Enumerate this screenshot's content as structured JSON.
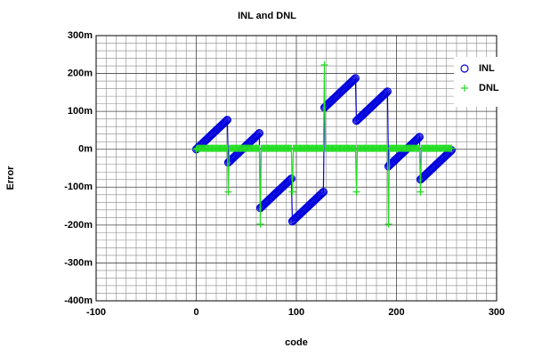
{
  "chart_data": {
    "type": "line",
    "title": "INL and DNL",
    "x_label": "code",
    "y_label": "Error",
    "xlim": [
      -100,
      300
    ],
    "xticks": [
      -100,
      0,
      100,
      200,
      300
    ],
    "ylim": [
      -0.4,
      0.3
    ],
    "yticks": [
      {
        "value": -0.4,
        "label": "-400m"
      },
      {
        "value": -0.3,
        "label": "-300m"
      },
      {
        "value": -0.2,
        "label": "-200m"
      },
      {
        "value": -0.1,
        "label": "-100m"
      },
      {
        "value": 0,
        "label": "0m"
      },
      {
        "value": 0.1,
        "label": "100m"
      },
      {
        "value": 0.2,
        "label": "200m"
      },
      {
        "value": 0.3,
        "label": "300m"
      }
    ],
    "grid": true,
    "legend": "upper right",
    "x": [
      0,
      1,
      2,
      3,
      4,
      5,
      6,
      7,
      8,
      9,
      10,
      11,
      12,
      13,
      14,
      15,
      16,
      17,
      18,
      19,
      20,
      21,
      22,
      23,
      24,
      25,
      26,
      27,
      28,
      29,
      30,
      31,
      32,
      33,
      34,
      35,
      36,
      37,
      38,
      39,
      40,
      41,
      42,
      43,
      44,
      45,
      46,
      47,
      48,
      49,
      50,
      51,
      52,
      53,
      54,
      55,
      56,
      57,
      58,
      59,
      60,
      61,
      62,
      63,
      64,
      65,
      66,
      67,
      68,
      69,
      70,
      71,
      72,
      73,
      74,
      75,
      76,
      77,
      78,
      79,
      80,
      81,
      82,
      83,
      84,
      85,
      86,
      87,
      88,
      89,
      90,
      91,
      92,
      93,
      94,
      95,
      96,
      97,
      98,
      99,
      100,
      101,
      102,
      103,
      104,
      105,
      106,
      107,
      108,
      109,
      110,
      111,
      112,
      113,
      114,
      115,
      116,
      117,
      118,
      119,
      120,
      121,
      122,
      123,
      124,
      125,
      126,
      127,
      128,
      129,
      130,
      131,
      132,
      133,
      134,
      135,
      136,
      137,
      138,
      139,
      140,
      141,
      142,
      143,
      144,
      145,
      146,
      147,
      148,
      149,
      150,
      151,
      152,
      153,
      154,
      155,
      156,
      157,
      158,
      159,
      160,
      161,
      162,
      163,
      164,
      165,
      166,
      167,
      168,
      169,
      170,
      171,
      172,
      173,
      174,
      175,
      176,
      177,
      178,
      179,
      180,
      181,
      182,
      183,
      184,
      185,
      186,
      187,
      188,
      189,
      190,
      191,
      192,
      193,
      194,
      195,
      196,
      197,
      198,
      199,
      200,
      201,
      202,
      203,
      204,
      205,
      206,
      207,
      208,
      209,
      210,
      211,
      212,
      213,
      214,
      215,
      216,
      217,
      218,
      219,
      220,
      221,
      222,
      223,
      224,
      225,
      226,
      227,
      228,
      229,
      230,
      231,
      232,
      233,
      234,
      235,
      236,
      237,
      238,
      239,
      240,
      241,
      242,
      243,
      244,
      245,
      246,
      247,
      248,
      249,
      250,
      251,
      252,
      253,
      254,
      255
    ],
    "series": [
      {
        "name": "INL",
        "color": "#0000dd",
        "marker": "circle",
        "values": [
          0,
          0.0025,
          0.005,
          0.0075,
          0.01,
          0.0125,
          0.015,
          0.0175,
          0.02,
          0.0225,
          0.025,
          0.0275,
          0.03,
          0.0325,
          0.035,
          0.0375,
          0.04,
          0.0425,
          0.045,
          0.0475,
          0.05,
          0.0525,
          0.055,
          0.0575,
          0.06,
          0.0625,
          0.065,
          0.0675,
          0.07,
          0.0725,
          0.075,
          0.0775,
          -0.035,
          -0.0325,
          -0.03,
          -0.0275,
          -0.025,
          -0.0225,
          -0.02,
          -0.0175,
          -0.015,
          -0.0125,
          -0.01,
          -0.0075,
          -0.005,
          -0.0025,
          0,
          0.0025,
          0.005,
          0.0075,
          0.01,
          0.0125,
          0.015,
          0.0175,
          0.02,
          0.0225,
          0.025,
          0.0275,
          0.03,
          0.0325,
          0.035,
          0.0375,
          0.04,
          0.0425,
          -0.155,
          -0.1525,
          -0.15,
          -0.1475,
          -0.145,
          -0.1425,
          -0.14,
          -0.1375,
          -0.135,
          -0.1325,
          -0.13,
          -0.1275,
          -0.125,
          -0.1225,
          -0.12,
          -0.1175,
          -0.115,
          -0.1125,
          -0.11,
          -0.1075,
          -0.105,
          -0.1025,
          -0.1,
          -0.0975,
          -0.095,
          -0.0925,
          -0.09,
          -0.0875,
          -0.085,
          -0.0825,
          -0.08,
          -0.0775,
          -0.19,
          -0.1875,
          -0.185,
          -0.1825,
          -0.18,
          -0.1775,
          -0.175,
          -0.1725,
          -0.17,
          -0.1675,
          -0.165,
          -0.1625,
          -0.16,
          -0.1575,
          -0.155,
          -0.1525,
          -0.15,
          -0.1475,
          -0.145,
          -0.1425,
          -0.14,
          -0.1375,
          -0.135,
          -0.1325,
          -0.13,
          -0.1275,
          -0.125,
          -0.1225,
          -0.12,
          -0.1175,
          -0.115,
          -0.1125,
          0.11,
          0.1125,
          0.115,
          0.1175,
          0.12,
          0.1225,
          0.125,
          0.1275,
          0.13,
          0.1325,
          0.135,
          0.1375,
          0.14,
          0.1425,
          0.145,
          0.1475,
          0.15,
          0.1525,
          0.155,
          0.1575,
          0.16,
          0.1625,
          0.165,
          0.1675,
          0.17,
          0.1725,
          0.175,
          0.1775,
          0.18,
          0.1825,
          0.185,
          0.1875,
          0.075,
          0.0775,
          0.08,
          0.0825,
          0.085,
          0.0875,
          0.09,
          0.0925,
          0.095,
          0.0975,
          0.1,
          0.1025,
          0.105,
          0.1075,
          0.11,
          0.1125,
          0.115,
          0.1175,
          0.12,
          0.1225,
          0.125,
          0.1275,
          0.13,
          0.1325,
          0.135,
          0.1375,
          0.14,
          0.1425,
          0.145,
          0.1475,
          0.15,
          0.1525,
          -0.045,
          -0.0425,
          -0.04,
          -0.0375,
          -0.035,
          -0.0325,
          -0.03,
          -0.0275,
          -0.025,
          -0.0225,
          -0.02,
          -0.0175,
          -0.015,
          -0.0125,
          -0.01,
          -0.0075,
          -0.005,
          -0.0025,
          0,
          0.0025,
          0.005,
          0.0075,
          0.01,
          0.0125,
          0.015,
          0.0175,
          0.02,
          0.0225,
          0.025,
          0.0275,
          0.03,
          0.0325,
          -0.08,
          -0.0775,
          -0.075,
          -0.0725,
          -0.07,
          -0.0675,
          -0.065,
          -0.0625,
          -0.06,
          -0.0575,
          -0.055,
          -0.0525,
          -0.05,
          -0.0475,
          -0.045,
          -0.0425,
          -0.04,
          -0.0375,
          -0.035,
          -0.0325,
          -0.03,
          -0.0275,
          -0.025,
          -0.0225,
          -0.02,
          -0.0175,
          -0.015,
          -0.0125,
          -0.01,
          -0.0075,
          -0.005,
          -0.0025
        ]
      },
      {
        "name": "DNL",
        "color": "#22dd22",
        "marker": "plus",
        "values": [
          0,
          0.0025,
          0.0025,
          0.0025,
          0.0025,
          0.0025,
          0.0025,
          0.0025,
          0.0025,
          0.0025,
          0.0025,
          0.0025,
          0.0025,
          0.0025,
          0.0025,
          0.0025,
          0.0025,
          0.0025,
          0.0025,
          0.0025,
          0.0025,
          0.0025,
          0.0025,
          0.0025,
          0.0025,
          0.0025,
          0.0025,
          0.0025,
          0.0025,
          0.0025,
          0.0025,
          0.0025,
          -0.1125,
          0.0025,
          0.0025,
          0.0025,
          0.0025,
          0.0025,
          0.0025,
          0.0025,
          0.0025,
          0.0025,
          0.0025,
          0.0025,
          0.0025,
          0.0025,
          0.0025,
          0.0025,
          0.0025,
          0.0025,
          0.0025,
          0.0025,
          0.0025,
          0.0025,
          0.0025,
          0.0025,
          0.0025,
          0.0025,
          0.0025,
          0.0025,
          0.0025,
          0.0025,
          0.0025,
          0.0025,
          -0.1975,
          0.0025,
          0.0025,
          0.0025,
          0.0025,
          0.0025,
          0.0025,
          0.0025,
          0.0025,
          0.0025,
          0.0025,
          0.0025,
          0.0025,
          0.0025,
          0.0025,
          0.0025,
          0.0025,
          0.0025,
          0.0025,
          0.0025,
          0.0025,
          0.0025,
          0.0025,
          0.0025,
          0.0025,
          0.0025,
          0.0025,
          0.0025,
          0.0025,
          0.0025,
          0.0025,
          0.0025,
          -0.1125,
          0.0025,
          0.0025,
          0.0025,
          0.0025,
          0.0025,
          0.0025,
          0.0025,
          0.0025,
          0.0025,
          0.0025,
          0.0025,
          0.0025,
          0.0025,
          0.0025,
          0.0025,
          0.0025,
          0.0025,
          0.0025,
          0.0025,
          0.0025,
          0.0025,
          0.0025,
          0.0025,
          0.0025,
          0.0025,
          0.0025,
          0.0025,
          0.0025,
          0.0025,
          0.0025,
          0.0025,
          0.2225,
          0.0025,
          0.0025,
          0.0025,
          0.0025,
          0.0025,
          0.0025,
          0.0025,
          0.0025,
          0.0025,
          0.0025,
          0.0025,
          0.0025,
          0.0025,
          0.0025,
          0.0025,
          0.0025,
          0.0025,
          0.0025,
          0.0025,
          0.0025,
          0.0025,
          0.0025,
          0.0025,
          0.0025,
          0.0025,
          0.0025,
          0.0025,
          0.0025,
          0.0025,
          0.0025,
          0.0025,
          -0.1125,
          0.0025,
          0.0025,
          0.0025,
          0.0025,
          0.0025,
          0.0025,
          0.0025,
          0.0025,
          0.0025,
          0.0025,
          0.0025,
          0.0025,
          0.0025,
          0.0025,
          0.0025,
          0.0025,
          0.0025,
          0.0025,
          0.0025,
          0.0025,
          0.0025,
          0.0025,
          0.0025,
          0.0025,
          0.0025,
          0.0025,
          0.0025,
          0.0025,
          0.0025,
          0.0025,
          0.0025,
          -0.1975,
          0.0025,
          0.0025,
          0.0025,
          0.0025,
          0.0025,
          0.0025,
          0.0025,
          0.0025,
          0.0025,
          0.0025,
          0.0025,
          0.0025,
          0.0025,
          0.0025,
          0.0025,
          0.0025,
          0.0025,
          0.0025,
          0.0025,
          0.0025,
          0.0025,
          0.0025,
          0.0025,
          0.0025,
          0.0025,
          0.0025,
          0.0025,
          0.0025,
          0.0025,
          0.0025,
          0.0025,
          -0.1125,
          0.0025,
          0.0025,
          0.0025,
          0.0025,
          0.0025,
          0.0025,
          0.0025,
          0.0025,
          0.0025,
          0.0025,
          0.0025,
          0.0025,
          0.0025,
          0.0025,
          0.0025,
          0.0025,
          0.0025,
          0.0025,
          0.0025,
          0.0025,
          0.0025,
          0.0025,
          0.0025,
          0.0025,
          0.0025,
          0.0025,
          0.0025,
          0.0025,
          0.0025,
          0.0025,
          0.0025
        ]
      }
    ]
  }
}
